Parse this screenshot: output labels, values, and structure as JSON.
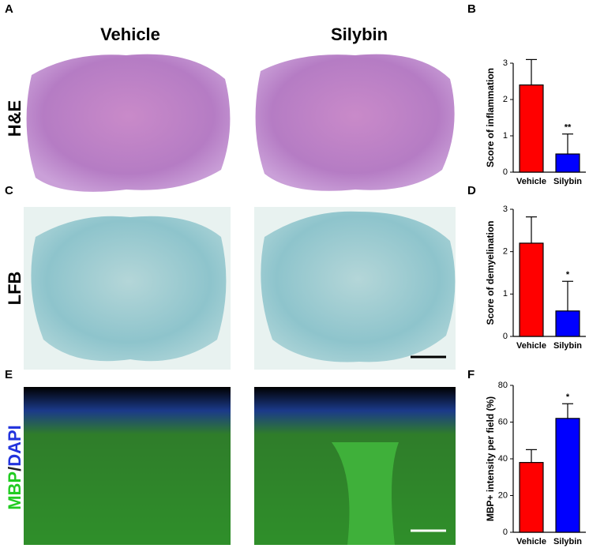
{
  "figure": {
    "panel_labels": [
      "A",
      "C",
      "E"
    ],
    "column_headers": [
      "Vehicle",
      "Silybin"
    ],
    "row_labels": {
      "he": "H&E",
      "lfb": "LFB",
      "mbp": "MBP",
      "slash": "/",
      "dapi": "DAPI"
    }
  },
  "chart_data": [
    {
      "type": "bar",
      "panel": "B",
      "y_label": "Score of inflammation",
      "categories": [
        "Vehicle",
        "Silybin"
      ],
      "values": [
        2.4,
        0.5
      ],
      "errors": [
        0.7,
        0.55
      ],
      "significance": [
        null,
        "**"
      ],
      "colors": [
        "#ff0000",
        "#0000ff"
      ],
      "ylim": [
        0,
        3
      ],
      "yticks": [
        0,
        1,
        2,
        3
      ]
    },
    {
      "type": "bar",
      "panel": "D",
      "y_label": "Score of demyelination",
      "categories": [
        "Vehicle",
        "Silybin"
      ],
      "values": [
        2.2,
        0.6
      ],
      "errors": [
        0.62,
        0.7
      ],
      "significance": [
        null,
        "*"
      ],
      "colors": [
        "#ff0000",
        "#0000ff"
      ],
      "ylim": [
        0,
        3
      ],
      "yticks": [
        0,
        1,
        2,
        3
      ]
    },
    {
      "type": "bar",
      "panel": "F",
      "y_label": "MBP+ intensity per field (%)",
      "categories": [
        "Vehicle",
        "Silybin"
      ],
      "values": [
        38,
        62
      ],
      "errors": [
        7,
        8
      ],
      "significance": [
        null,
        "*"
      ],
      "colors": [
        "#ff0000",
        "#0000ff"
      ],
      "ylim": [
        0,
        80
      ],
      "yticks": [
        0,
        20,
        40,
        60,
        80
      ]
    }
  ]
}
